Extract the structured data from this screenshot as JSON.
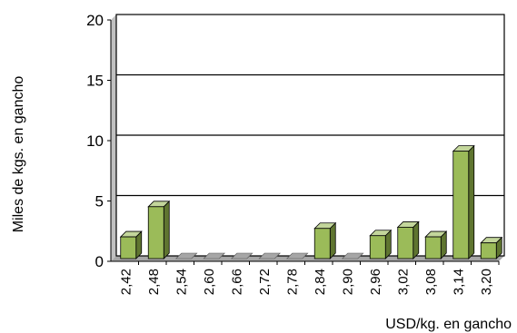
{
  "chart_data": {
    "type": "bar",
    "xlabel": "USD/kg. en gancho",
    "ylabel": "Miles de kgs. en gancho",
    "ylim": [
      0,
      20
    ],
    "yticks": [
      0,
      5,
      10,
      15,
      20
    ],
    "grid": true,
    "categories": [
      "2,42",
      "2,48",
      "2,54",
      "2,60",
      "2,66",
      "2,72",
      "2,78",
      "2,84",
      "2,90",
      "2,96",
      "3,02",
      "3,08",
      "3,14",
      "3,20"
    ],
    "values": [
      1.8,
      4.3,
      0,
      0,
      0,
      0,
      0,
      2.5,
      0,
      1.9,
      2.6,
      1.8,
      8.9,
      1.3
    ],
    "colors": {
      "bar_front": "#9bbb59",
      "bar_side": "#5f7530",
      "bar_top": "#c3d69b",
      "wall": "#c0c0c0",
      "floor": "#a6a6a6"
    }
  }
}
